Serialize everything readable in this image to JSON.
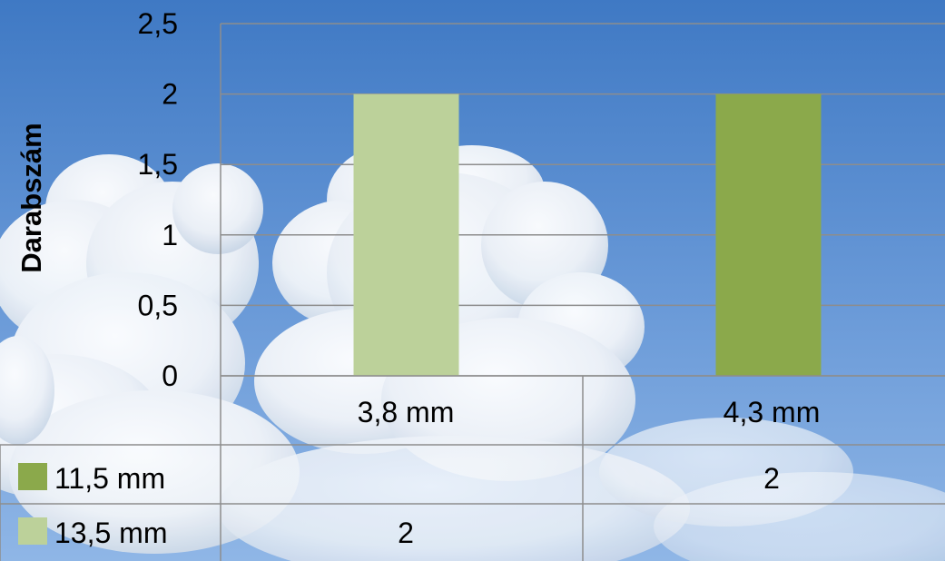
{
  "chart_data": {
    "type": "bar",
    "ylabel": "Darabszám",
    "xlabel": "",
    "categories": [
      "3,8 mm",
      "4,3 mm"
    ],
    "ylim": [
      0,
      2.5
    ],
    "yticks": [
      "0",
      "0,5",
      "1",
      "1,5",
      "2",
      "2,5"
    ],
    "ytick_values": [
      0,
      0.5,
      1,
      1.5,
      2,
      2.5
    ],
    "series": [
      {
        "name": "11,5 mm",
        "color": "#8ba94b",
        "values": [
          null,
          2
        ],
        "labels": [
          "",
          "2"
        ]
      },
      {
        "name": "13,5 mm",
        "color": "#bcd19a",
        "values": [
          2,
          null
        ],
        "labels": [
          "2",
          ""
        ]
      }
    ],
    "legend": "data-table",
    "grid": true,
    "background": "sky-with-clouds"
  }
}
